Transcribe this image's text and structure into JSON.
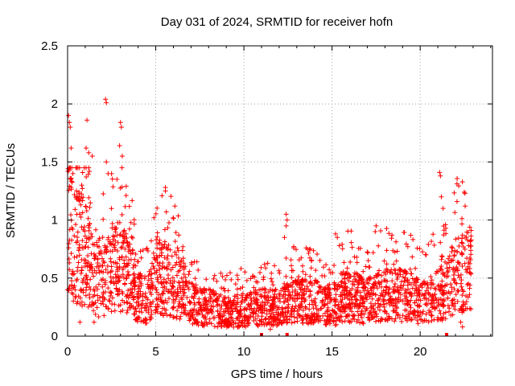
{
  "chart_data": {
    "type": "scatter",
    "title": "Day 031 of 2024, SRMTID for receiver hofn",
    "xlabel": "GPS time / hours",
    "ylabel": "SRMTID / TECUs",
    "xlim": [
      0,
      24.1
    ],
    "ylim": [
      0,
      2.5
    ],
    "xticks": [
      0,
      5,
      10,
      15,
      20
    ],
    "yticks": [
      0,
      0.5,
      1,
      1.5,
      2,
      2.5
    ],
    "grid": true,
    "marker": "+",
    "series_color": "#ff0000",
    "series": [
      {
        "name": "SRMTID",
        "profile_x": [
          0,
          0.5,
          1,
          1.5,
          2,
          2.5,
          3,
          3.5,
          4,
          4.5,
          5,
          5.5,
          6,
          6.5,
          7,
          7.5,
          8,
          9,
          10,
          11,
          12,
          13,
          14,
          15,
          16,
          17,
          18,
          19,
          20,
          20.5,
          21,
          21.5,
          22,
          22.5,
          22.9
        ],
        "profile_y": [
          0.9,
          0.8,
          0.7,
          0.5,
          0.45,
          0.6,
          0.6,
          0.5,
          0.35,
          0.3,
          0.5,
          0.5,
          0.45,
          0.4,
          0.3,
          0.25,
          0.25,
          0.2,
          0.22,
          0.25,
          0.25,
          0.3,
          0.3,
          0.25,
          0.35,
          0.3,
          0.35,
          0.35,
          0.3,
          0.32,
          0.35,
          0.4,
          0.5,
          0.55,
          0.55
        ],
        "points": [
          [
            0.05,
            1.9
          ],
          [
            0.1,
            1.84
          ],
          [
            0.15,
            1.8
          ],
          [
            0.2,
            1.62
          ],
          [
            0.3,
            1.4
          ],
          [
            0.5,
            1.25
          ],
          [
            0.8,
            1.3
          ],
          [
            1.05,
            1.62
          ],
          [
            1.1,
            1.86
          ],
          [
            1.2,
            1.58
          ],
          [
            1.4,
            1.55
          ],
          [
            2.15,
            2.04
          ],
          [
            2.2,
            2.01
          ],
          [
            2.2,
            1.5
          ],
          [
            2.3,
            1.4
          ],
          [
            2.8,
            1.35
          ],
          [
            3.0,
            1.84
          ],
          [
            3.05,
            1.8
          ],
          [
            2.95,
            1.64
          ],
          [
            3.1,
            1.55
          ],
          [
            5.55,
            1.28
          ],
          [
            5.55,
            1.25
          ],
          [
            5.6,
            1.07
          ],
          [
            4.9,
            1.02
          ],
          [
            12.4,
            1.05
          ],
          [
            12.45,
            1.0
          ],
          [
            12.4,
            0.95
          ],
          [
            12.3,
            0.85
          ],
          [
            15.2,
            0.88
          ],
          [
            15.3,
            0.85
          ],
          [
            17.5,
            0.95
          ],
          [
            17.45,
            0.9
          ],
          [
            19.3,
            0.77
          ],
          [
            21.1,
            1.41
          ],
          [
            21.15,
            1.38
          ],
          [
            21.2,
            1.2
          ],
          [
            21.3,
            1.1
          ],
          [
            22.5,
            1.24
          ],
          [
            22.55,
            1.12
          ],
          [
            22.4,
            0.87
          ],
          [
            0.7,
            0.12
          ],
          [
            1.5,
            0.12
          ],
          [
            8.5,
            0.08
          ],
          [
            11.5,
            0.06
          ],
          [
            16.0,
            0.12
          ],
          [
            22.3,
            0.12
          ],
          [
            22.4,
            0.08
          ]
        ]
      }
    ],
    "axis_markers_x": [
      11.0,
      12.45,
      21.5
    ]
  }
}
